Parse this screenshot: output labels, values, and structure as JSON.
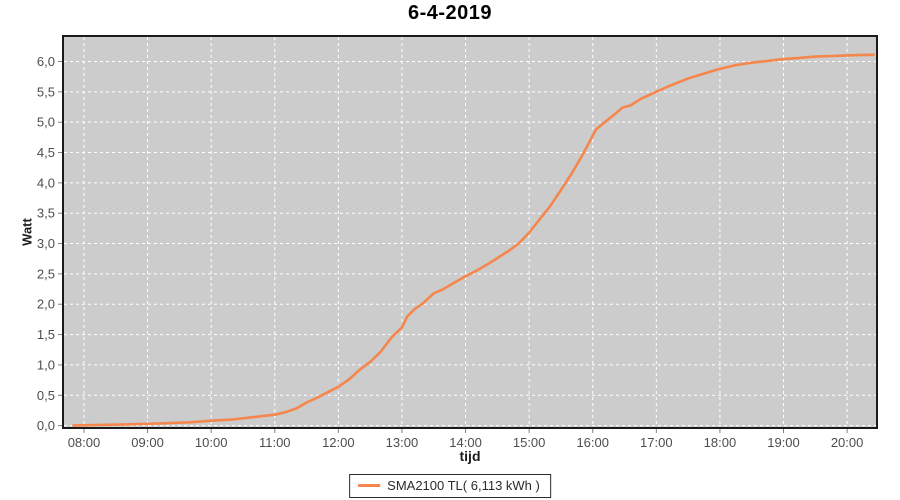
{
  "title": "6-4-2019",
  "legend": {
    "label": "SMA2100 TL( 6,113 kWh )"
  },
  "colors": {
    "line": "#f5864c",
    "plot_background": "#cccccc",
    "gridline": "#ffffff",
    "tick_label": "#4d4d4d",
    "tick_mark": "#808080",
    "plot_border": "#1a1a1a",
    "axis_title": "#1c1c1c",
    "title": "#000000",
    "page_background": "#ffffff"
  },
  "chart_data": {
    "type": "line",
    "title": "6-4-2019",
    "xlabel": "tijd",
    "ylabel": "Watt",
    "x_ticks": [
      "08:00",
      "09:00",
      "10:00",
      "11:00",
      "12:00",
      "13:00",
      "14:00",
      "15:00",
      "16:00",
      "17:00",
      "18:00",
      "19:00",
      "20:00"
    ],
    "y_ticks": [
      "0,0",
      "0,5",
      "1,0",
      "1,5",
      "2,0",
      "2,5",
      "3,0",
      "3,5",
      "4,0",
      "4,5",
      "5,0",
      "5,5",
      "6,0"
    ],
    "y_tick_values": [
      0,
      0.5,
      1,
      1.5,
      2,
      2.5,
      3,
      3.5,
      4,
      4.5,
      5,
      5.5,
      6
    ],
    "ylim": [
      0,
      6.42
    ],
    "xlim_hours": [
      7.67,
      20.47
    ],
    "grid": true,
    "grid_style": "white-dashed",
    "legend_position": "bottom",
    "series": [
      {
        "name": "SMA2100 TL( 6,113 kWh )",
        "color": "#f5864c",
        "final_total_kwh": "6,113 kWh",
        "points": [
          [
            "07:50",
            0.0
          ],
          [
            "08:10",
            0.01
          ],
          [
            "08:40",
            0.02
          ],
          [
            "09:10",
            0.035
          ],
          [
            "09:40",
            0.055
          ],
          [
            "10:00",
            0.08
          ],
          [
            "10:20",
            0.1
          ],
          [
            "10:40",
            0.14
          ],
          [
            "11:00",
            0.18
          ],
          [
            "11:10",
            0.22
          ],
          [
            "11:20",
            0.28
          ],
          [
            "11:30",
            0.38
          ],
          [
            "11:40",
            0.46
          ],
          [
            "11:50",
            0.55
          ],
          [
            "12:00",
            0.64
          ],
          [
            "12:10",
            0.76
          ],
          [
            "12:20",
            0.92
          ],
          [
            "12:30",
            1.05
          ],
          [
            "12:40",
            1.22
          ],
          [
            "12:50",
            1.45
          ],
          [
            "13:00",
            1.62
          ],
          [
            "13:05",
            1.8
          ],
          [
            "13:12",
            1.92
          ],
          [
            "13:20",
            2.02
          ],
          [
            "13:30",
            2.18
          ],
          [
            "13:38",
            2.24
          ],
          [
            "13:45",
            2.31
          ],
          [
            "14:00",
            2.46
          ],
          [
            "14:10",
            2.55
          ],
          [
            "14:20",
            2.65
          ],
          [
            "14:30",
            2.76
          ],
          [
            "14:40",
            2.87
          ],
          [
            "14:50",
            3.0
          ],
          [
            "15:00",
            3.18
          ],
          [
            "15:10",
            3.4
          ],
          [
            "15:20",
            3.62
          ],
          [
            "15:30",
            3.88
          ],
          [
            "15:40",
            4.15
          ],
          [
            "15:50",
            4.45
          ],
          [
            "15:57",
            4.68
          ],
          [
            "16:03",
            4.88
          ],
          [
            "16:10",
            4.98
          ],
          [
            "16:20",
            5.12
          ],
          [
            "16:28",
            5.24
          ],
          [
            "16:36",
            5.28
          ],
          [
            "16:45",
            5.38
          ],
          [
            "17:00",
            5.5
          ],
          [
            "17:10",
            5.58
          ],
          [
            "17:20",
            5.65
          ],
          [
            "17:30",
            5.72
          ],
          [
            "17:45",
            5.8
          ],
          [
            "18:00",
            5.88
          ],
          [
            "18:15",
            5.94
          ],
          [
            "18:30",
            5.98
          ],
          [
            "18:45",
            6.01
          ],
          [
            "19:00",
            6.04
          ],
          [
            "19:15",
            6.06
          ],
          [
            "19:30",
            6.08
          ],
          [
            "19:45",
            6.09
          ],
          [
            "20:00",
            6.1
          ],
          [
            "20:10",
            6.105
          ],
          [
            "20:25",
            6.11
          ]
        ]
      }
    ]
  }
}
